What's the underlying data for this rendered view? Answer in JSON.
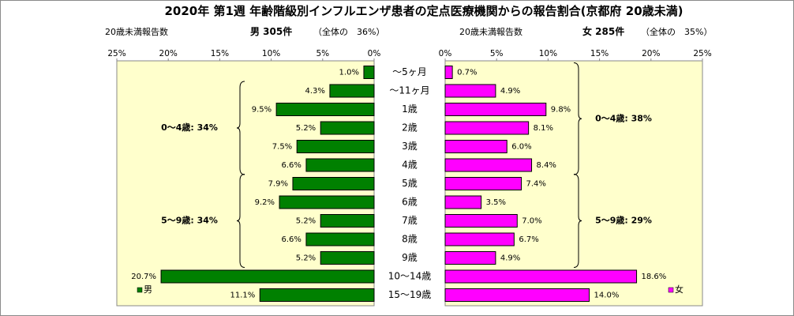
{
  "title": "2020年 第1週 年齢階級別インフルエンザ患者の定点医療機関からの報告割合(京都府 20歳未満)",
  "chart_data": {
    "type": "bar",
    "orientation": "horizontal-butterfly",
    "categories": [
      "〜5ヶ月",
      "〜11ヶ月",
      "1歳",
      "2歳",
      "3歳",
      "4歳",
      "5歳",
      "6歳",
      "7歳",
      "8歳",
      "9歳",
      "10〜14歳",
      "15〜19歳"
    ],
    "series": [
      {
        "name": "男",
        "color": "#008000",
        "values": [
          1.0,
          4.3,
          9.5,
          5.2,
          7.5,
          6.6,
          7.9,
          9.2,
          5.2,
          6.6,
          5.2,
          20.7,
          11.1
        ],
        "labels": [
          "1.0%",
          "4.3%",
          "9.5%",
          "5.2%",
          "7.5%",
          "6.6%",
          "7.9%",
          "9.2%",
          "5.2%",
          "6.6%",
          "5.2%",
          "20.7%",
          "11.1%"
        ]
      },
      {
        "name": "女",
        "color": "#ff00ff",
        "values": [
          0.7,
          4.9,
          9.8,
          8.1,
          6.0,
          8.4,
          7.4,
          3.5,
          7.0,
          6.7,
          4.9,
          18.6,
          14.0
        ],
        "labels": [
          "0.7%",
          "4.9%",
          "9.8%",
          "8.1%",
          "6.0%",
          "8.4%",
          "7.4%",
          "3.5%",
          "7.0%",
          "6.7%",
          "4.9%",
          "18.6%",
          "14.0%"
        ]
      }
    ],
    "left_header": {
      "axis_title": "20歳未満報告数",
      "summary": "男 305件",
      "share": "（全体の　36%）"
    },
    "right_header": {
      "axis_title": "20歳未満報告数",
      "summary": "女 285件",
      "share": "（全体の　35%）"
    },
    "left_ticks": [
      "25%",
      "20%",
      "15%",
      "10%",
      "5%",
      "0%"
    ],
    "right_ticks": [
      "0%",
      "5%",
      "10%",
      "15%",
      "20%",
      "25%"
    ],
    "xlim": [
      0,
      25
    ],
    "groups_left": [
      {
        "label": "0〜4歳: 34%",
        "from": 1,
        "to": 5
      },
      {
        "label": "5〜9歳: 34%",
        "from": 6,
        "to": 10
      }
    ],
    "groups_right": [
      {
        "label": "0〜4歳: 38%",
        "from": 0,
        "to": 5
      },
      {
        "label": "5〜9歳: 29%",
        "from": 6,
        "to": 10
      }
    ],
    "legend": {
      "left": "男",
      "right": "女"
    },
    "plot_background": "#ffffcc",
    "grid": false
  }
}
